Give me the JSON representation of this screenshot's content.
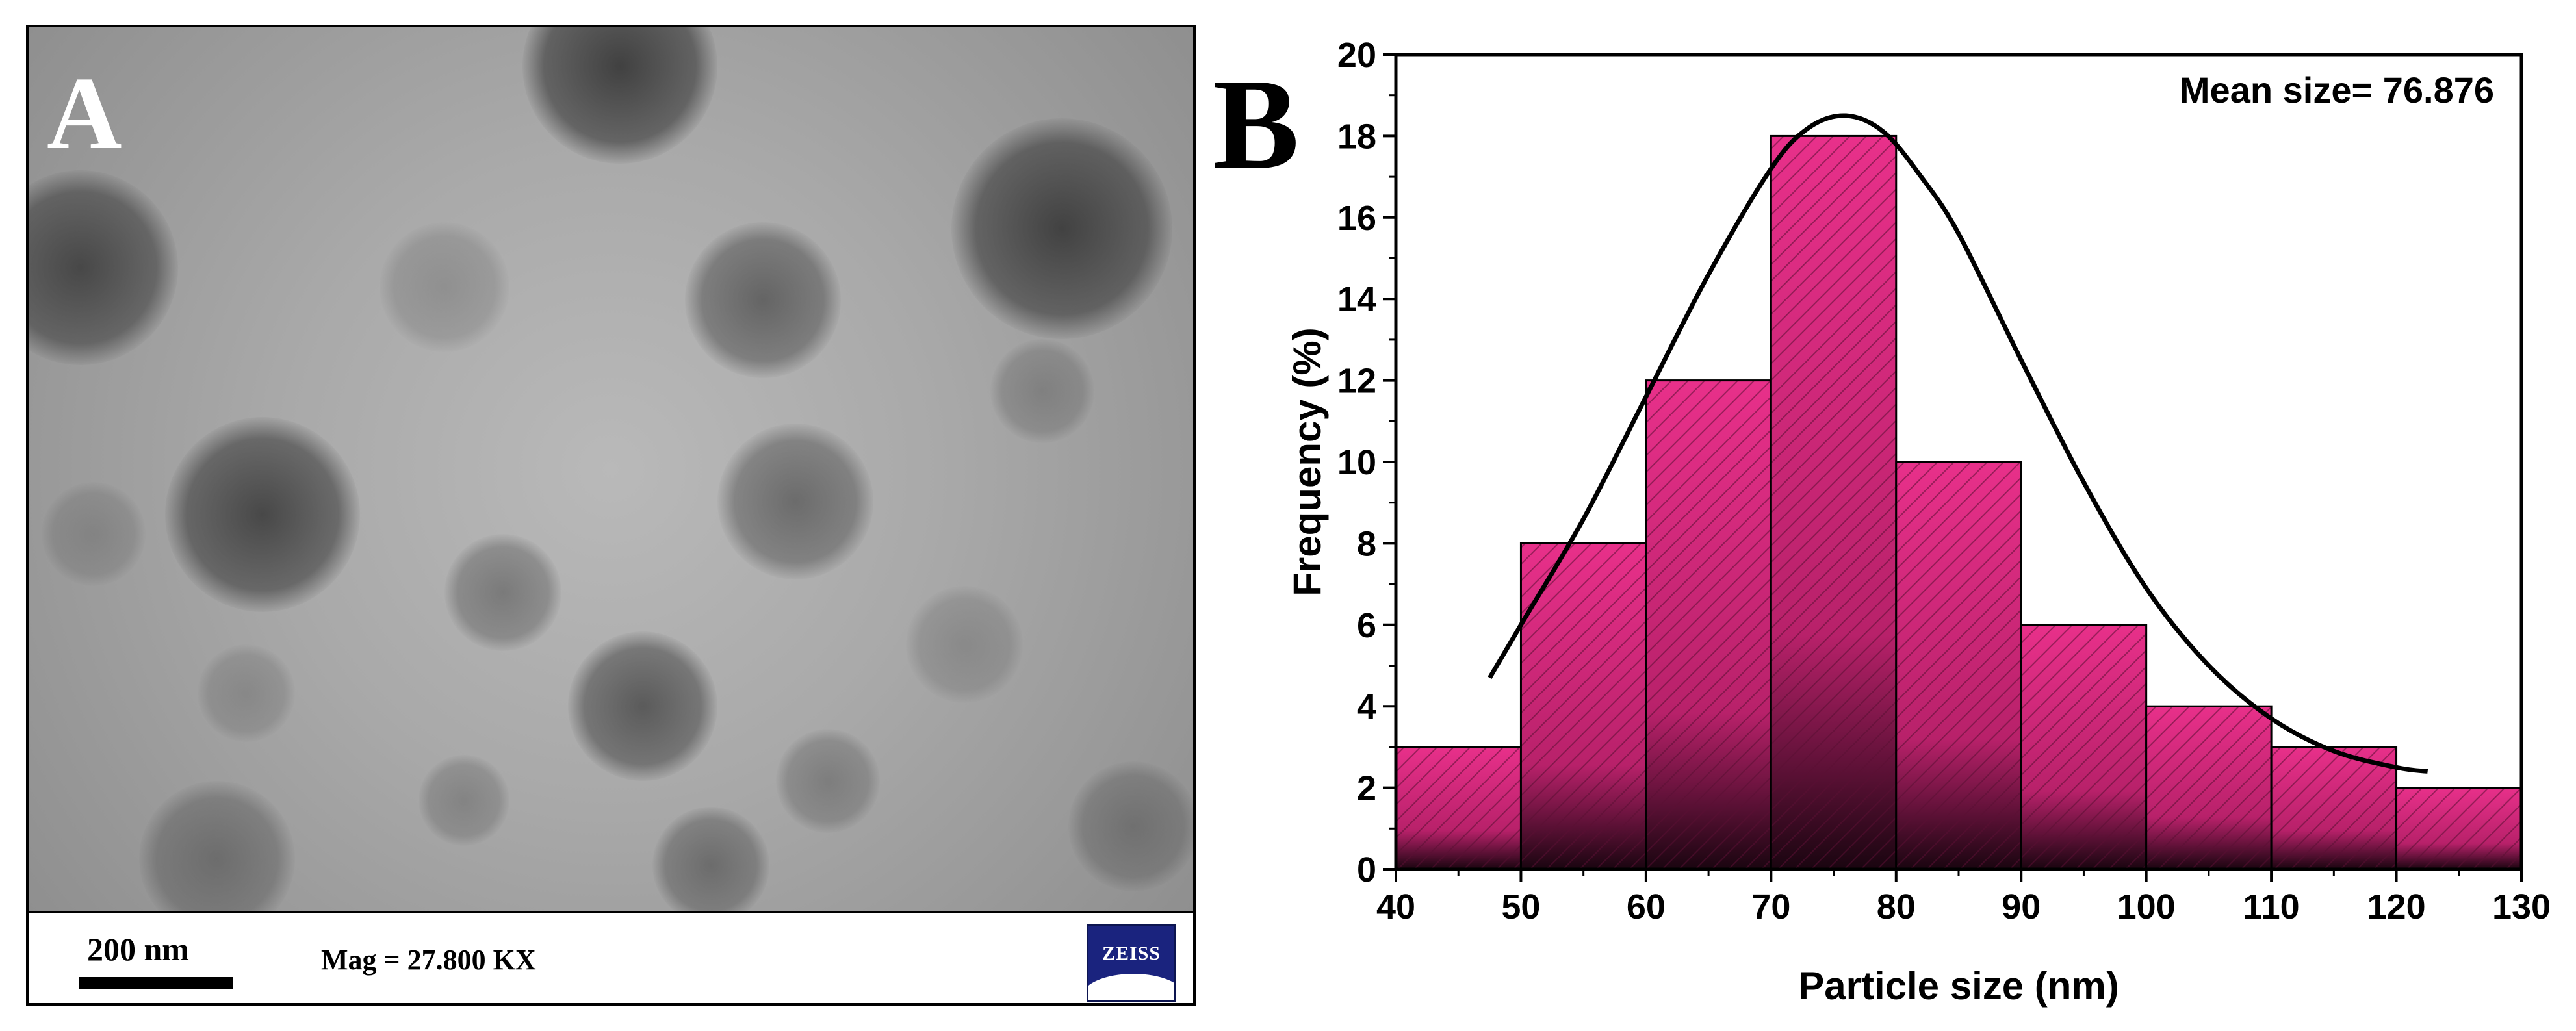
{
  "panel_a": {
    "letter": "A",
    "scale_bar_label": "200 nm",
    "magnification_text": "Mag = 27.800 KX",
    "logo_text": "ZEISS"
  },
  "panel_b": {
    "letter": "B"
  },
  "chart_data": {
    "type": "bar",
    "title": "",
    "xlabel": "Particle size (nm)",
    "ylabel": "Frequency (%)",
    "xlim": [
      40,
      130
    ],
    "ylim": [
      0,
      20
    ],
    "x_ticks": [
      40,
      50,
      60,
      70,
      80,
      90,
      100,
      110,
      120,
      130
    ],
    "y_ticks": [
      0,
      2,
      4,
      6,
      8,
      10,
      12,
      14,
      16,
      18,
      20
    ],
    "bins": [
      {
        "start": 40,
        "end": 50,
        "value": 3
      },
      {
        "start": 50,
        "end": 60,
        "value": 8
      },
      {
        "start": 60,
        "end": 70,
        "value": 12
      },
      {
        "start": 70,
        "end": 80,
        "value": 18
      },
      {
        "start": 80,
        "end": 90,
        "value": 10
      },
      {
        "start": 90,
        "end": 100,
        "value": 6
      },
      {
        "start": 100,
        "end": 110,
        "value": 4
      },
      {
        "start": 110,
        "end": 120,
        "value": 3
      },
      {
        "start": 120,
        "end": 130,
        "value": 2
      }
    ],
    "fit_curve": {
      "type": "gaussian-fit",
      "x": [
        47.5,
        50,
        55,
        60,
        65,
        70,
        73,
        76,
        79,
        82,
        85,
        90,
        95,
        100,
        105,
        110,
        115,
        120,
        122.5
      ],
      "y": [
        4.7,
        6.0,
        8.6,
        11.6,
        14.6,
        17.2,
        18.2,
        18.5,
        18.1,
        17.0,
        15.6,
        12.5,
        9.5,
        6.9,
        5.0,
        3.7,
        2.9,
        2.5,
        2.4
      ]
    },
    "annotation": "Mean size= 76.876",
    "bar_color": "#e8308a",
    "bar_dark_color": "#1a0510",
    "hatch_color": "#5a0f33",
    "curve_color": "#000000",
    "grid": false,
    "axes_box": true
  }
}
